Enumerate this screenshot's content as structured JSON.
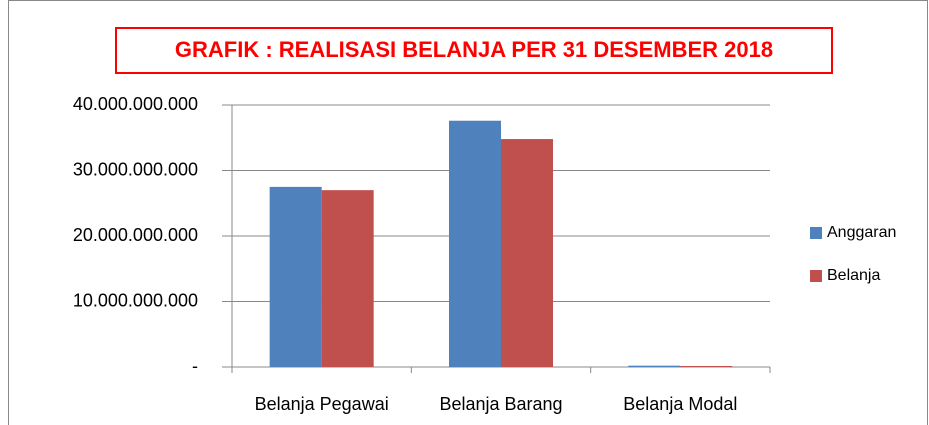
{
  "chart_data": {
    "type": "bar",
    "title": "GRAFIK : REALISASI BELANJA PER 31 DESEMBER 2018",
    "categories": [
      "Belanja Pegawai",
      "Belanja Barang",
      "Belanja Modal"
    ],
    "series": [
      {
        "name": "Anggaran",
        "color": "#4f81bd",
        "values": [
          27500000000,
          37600000000,
          200000000
        ]
      },
      {
        "name": "Belanja",
        "color": "#c0504d",
        "values": [
          27000000000,
          34800000000,
          150000000
        ]
      }
    ],
    "ylim": [
      0,
      40000000000
    ],
    "yticks": [
      {
        "value": 0,
        "label": "-"
      },
      {
        "value": 10000000000,
        "label": "10.000.000.000"
      },
      {
        "value": 20000000000,
        "label": "20.000.000.000"
      },
      {
        "value": 30000000000,
        "label": "30.000.000.000"
      },
      {
        "value": 40000000000,
        "label": "40.000.000.000"
      }
    ],
    "grid": true,
    "legend": "right"
  }
}
